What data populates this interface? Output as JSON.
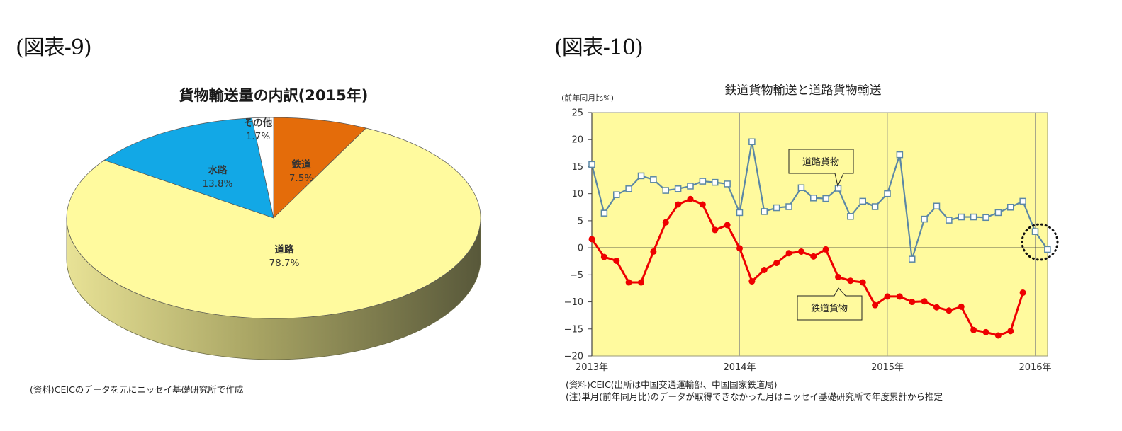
{
  "figure9": {
    "label": "(図表-9)",
    "source_note": "(資料)CEICのデータを元にニッセイ基礎研究所で作成"
  },
  "figure10": {
    "label": "(図表-10)",
    "source_note": "(資料)CEIC(出所は中国交通運輸部、中国国家鉄道局)",
    "note": "(注)単月(前年同月比)のデータが取得できなかった月はニッセイ基礎研究所で年度累計から推定"
  },
  "colors": {
    "road": "#FFFA9E",
    "road_side_light": "#E4DD8E",
    "road_side_dark": "#5E5E3A",
    "water": "#12A8E6",
    "rail": "#E46C0A",
    "other": "#FFFFFF",
    "plot_bg": "#FFFA9E",
    "road_line": "#5B87A5",
    "rail_line": "#EE0000"
  },
  "chart_data": [
    {
      "type": "pie",
      "title": "貨物輸送量の内訳(2015年)",
      "categories": [
        "道路",
        "水路",
        "その他",
        "鉄道"
      ],
      "values": [
        78.7,
        13.8,
        1.7,
        7.5
      ],
      "labels": [
        "78.7%",
        "13.8%",
        "1.7%",
        "7.5%"
      ],
      "style": "3d"
    },
    {
      "type": "line",
      "title": "鉄道貨物輸送と道路貨物輸送",
      "ylabel": "(前年同月比%)",
      "xlabel": "",
      "ylim": [
        -20,
        25
      ],
      "yticks": [
        25,
        20,
        15,
        10,
        5,
        0,
        -5,
        -10,
        -15,
        -20
      ],
      "xticks": [
        "2013年",
        "2014年",
        "2015年",
        "2016年"
      ],
      "grid": "vertical year lines",
      "series": [
        {
          "name": "道路貨物",
          "start": "2013-01",
          "marker": "square",
          "values": [
            15.4,
            6.4,
            9.8,
            10.9,
            13.3,
            12.6,
            10.6,
            10.9,
            11.4,
            12.3,
            12.1,
            11.8,
            6.5,
            19.6,
            6.7,
            7.4,
            7.6,
            11.1,
            9.2,
            9.1,
            11.0,
            5.8,
            8.6,
            7.6,
            10.0,
            17.2,
            -2.1,
            5.3,
            7.7,
            5.1,
            5.7,
            5.7,
            5.6,
            6.5,
            7.5,
            8.6,
            3.0,
            -0.3
          ]
        },
        {
          "name": "鉄道貨物",
          "start": "2013-01",
          "marker": "circle",
          "values": [
            1.6,
            -1.7,
            -2.4,
            -6.4,
            -6.4,
            -0.7,
            4.7,
            8.0,
            9.0,
            8.0,
            3.3,
            4.2,
            -0.1,
            -6.2,
            -4.1,
            -2.8,
            -1.0,
            -0.7,
            -1.6,
            -0.3,
            -5.4,
            -6.1,
            -6.4,
            -10.6,
            -9.0,
            -9.0,
            -10.0,
            -9.9,
            -11.0,
            -11.6,
            -10.9,
            -15.2,
            -15.6,
            -16.2,
            -15.4,
            -8.3
          ]
        }
      ],
      "annotations": [
        "道路貨物",
        "鉄道貨物",
        "dotted circle around 2016 road data"
      ]
    }
  ]
}
